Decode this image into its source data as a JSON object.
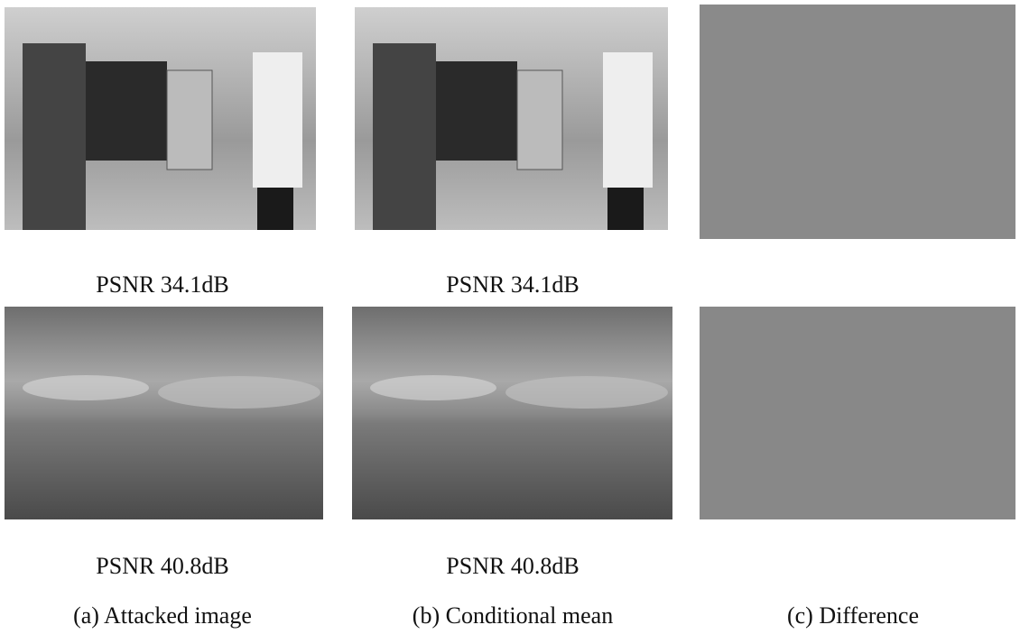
{
  "rows": [
    {
      "captions": [
        "PSNR 34.1dB",
        "PSNR 34.1dB"
      ]
    },
    {
      "captions": [
        "PSNR 40.8dB",
        "PSNR 40.8dB"
      ]
    }
  ],
  "columns": [
    "(a) Attacked image",
    "(b) Conditional mean",
    "(c) Difference"
  ]
}
